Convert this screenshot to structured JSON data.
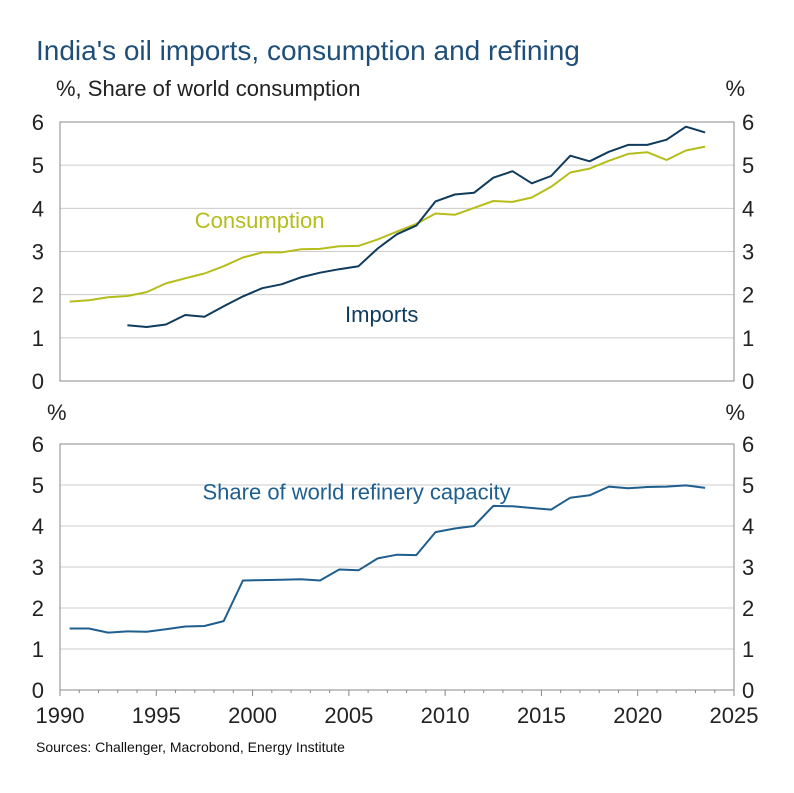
{
  "title": "India's oil imports, consumption and refining",
  "source": "Sources: Challenger, Macrobond, Energy Institute",
  "chart_data": [
    {
      "type": "line",
      "ylabel_left": "%, Share of world consumption",
      "ylabel_right": "%",
      "ylim": [
        0,
        6
      ],
      "yticks": [
        "0",
        "1",
        "2",
        "3",
        "4",
        "5",
        "6"
      ],
      "xlim": [
        1990,
        2025
      ],
      "grid": true,
      "series": [
        {
          "name": "Consumption",
          "color": "#b5bd1a",
          "x": [
            1990.5,
            1991.5,
            1992.5,
            1993.5,
            1994.5,
            1995.5,
            1996.5,
            1997.5,
            1998.5,
            1999.5,
            2000.5,
            2001.5,
            2002.5,
            2003.5,
            2004.5,
            2005.5,
            2006.5,
            2007.5,
            2008.5,
            2009.5,
            2010.5,
            2011.5,
            2012.5,
            2013.5,
            2014.5,
            2015.5,
            2016.5,
            2017.5,
            2018.5,
            2019.5,
            2020.5,
            2021.5,
            2022.5,
            2023.5
          ],
          "values": [
            1.84,
            1.87,
            1.94,
            1.97,
            2.06,
            2.26,
            2.38,
            2.49,
            2.66,
            2.86,
            2.98,
            2.98,
            3.05,
            3.06,
            3.12,
            3.13,
            3.28,
            3.46,
            3.64,
            3.88,
            3.85,
            4.01,
            4.17,
            4.15,
            4.25,
            4.5,
            4.83,
            4.92,
            5.1,
            5.26,
            5.3,
            5.12,
            5.34,
            5.43
          ]
        },
        {
          "name": "Imports",
          "color": "#0f3b5c",
          "x": [
            1993.5,
            1994.5,
            1995.5,
            1996.5,
            1997.5,
            1998.5,
            1999.5,
            2000.5,
            2001.5,
            2002.5,
            2003.5,
            2004.5,
            2005.5,
            2006.5,
            2007.5,
            2008.5,
            2009.5,
            2010.5,
            2011.5,
            2012.5,
            2013.5,
            2014.5,
            2015.5,
            2016.5,
            2017.5,
            2018.5,
            2019.5,
            2020.5,
            2021.5,
            2022.5,
            2023.5
          ],
          "values": [
            1.29,
            1.25,
            1.31,
            1.53,
            1.49,
            1.73,
            1.96,
            2.15,
            2.24,
            2.4,
            2.51,
            2.59,
            2.66,
            3.07,
            3.4,
            3.6,
            4.16,
            4.32,
            4.36,
            4.71,
            4.86,
            4.58,
            4.75,
            5.22,
            5.09,
            5.31,
            5.47,
            5.47,
            5.59,
            5.89,
            5.76
          ]
        }
      ],
      "annotations": [
        {
          "text": "Consumption",
          "x": 1997,
          "y": 3.55,
          "color": "#b5bd1a"
        },
        {
          "text": "Imports",
          "x": 2004.8,
          "y": 1.37,
          "color": "#0f3b5c"
        }
      ]
    },
    {
      "type": "line",
      "ylabel_left": "%",
      "ylabel_right": "%",
      "ylim": [
        0,
        6
      ],
      "yticks": [
        "0",
        "1",
        "2",
        "3",
        "4",
        "5",
        "6"
      ],
      "xlim": [
        1990,
        2025
      ],
      "xticks": [
        "1990",
        "1995",
        "2000",
        "2005",
        "2010",
        "2015",
        "2020",
        "2025"
      ],
      "xlabel": "",
      "grid": true,
      "series": [
        {
          "name": "Share of world refinery capacity",
          "color": "#1f5f8f",
          "x": [
            1990.5,
            1991.5,
            1992.5,
            1993.5,
            1994.5,
            1995.5,
            1996.5,
            1997.5,
            1998.5,
            1999.5,
            2000.5,
            2001.5,
            2002.5,
            2003.5,
            2004.5,
            2005.5,
            2006.5,
            2007.5,
            2008.5,
            2009.5,
            2010.5,
            2011.5,
            2012.5,
            2013.5,
            2014.5,
            2015.5,
            2016.5,
            2017.5,
            2018.5,
            2019.5,
            2020.5,
            2021.5,
            2022.5,
            2023.5
          ],
          "values": [
            1.5,
            1.5,
            1.4,
            1.43,
            1.42,
            1.48,
            1.55,
            1.56,
            1.68,
            2.67,
            2.68,
            2.69,
            2.7,
            2.67,
            2.94,
            2.92,
            3.21,
            3.3,
            3.29,
            3.85,
            3.94,
            4.0,
            4.49,
            4.48,
            4.44,
            4.4,
            4.69,
            4.75,
            4.96,
            4.92,
            4.95,
            4.96,
            4.99,
            4.93
          ]
        }
      ],
      "annotations": [
        {
          "text": "Share of world refinery capacity",
          "x": 1997.4,
          "y": 4.65,
          "color": "#1f5f8f"
        }
      ]
    }
  ]
}
